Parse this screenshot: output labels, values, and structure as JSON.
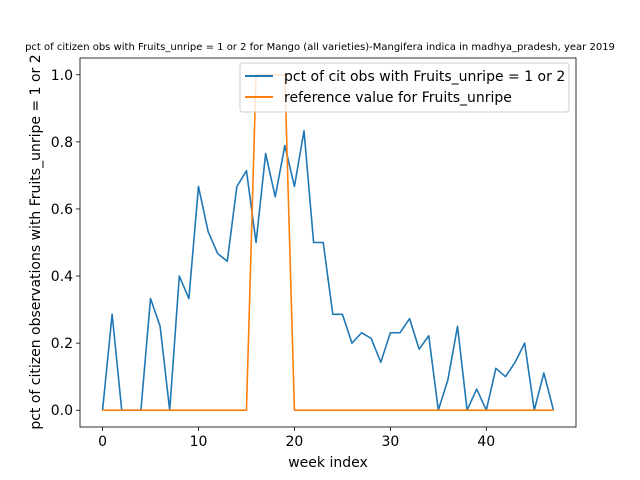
{
  "chart_data": {
    "type": "line",
    "title": "pct of citizen obs with Fruits_unripe = 1 or 2 for Mango (all varieties)-Mangifera indica in madhya_pradesh, year 2019",
    "xlabel": "week index",
    "ylabel": "pct of citizen observations with Fruits_unripe = 1 or 2",
    "xlim": [
      -2.35,
      49.35
    ],
    "ylim": [
      -0.05,
      1.05
    ],
    "xticks": [
      0,
      10,
      20,
      30,
      40
    ],
    "yticks": [
      0.0,
      0.2,
      0.4,
      0.6,
      0.8,
      1.0
    ],
    "legend_position": "top-right",
    "grid": false,
    "series": [
      {
        "name": "pct of cit obs with Fruits_unripe = 1 or 2",
        "color": "#1f77b4",
        "x": [
          0,
          1,
          2,
          3,
          4,
          5,
          6,
          7,
          8,
          9,
          10,
          11,
          12,
          13,
          14,
          15,
          16,
          17,
          18,
          19,
          20,
          21,
          22,
          23,
          24,
          25,
          26,
          27,
          28,
          29,
          30,
          31,
          32,
          33,
          34,
          35,
          36,
          37,
          38,
          39,
          40,
          41,
          42,
          43,
          44,
          45,
          46,
          47
        ],
        "y": [
          0.0,
          0.286,
          0.0,
          0.0,
          0.0,
          0.333,
          0.25,
          0.0,
          0.4,
          0.333,
          0.667,
          0.533,
          0.467,
          0.444,
          0.667,
          0.714,
          0.5,
          0.765,
          0.636,
          0.789,
          0.667,
          0.833,
          0.5,
          0.5,
          0.286,
          0.286,
          0.2,
          0.231,
          0.214,
          0.143,
          0.231,
          0.231,
          0.273,
          0.182,
          0.222,
          0.0,
          0.091,
          0.25,
          0.0,
          0.063,
          0.0,
          0.125,
          0.1,
          0.143,
          0.2,
          0.0,
          0.111,
          0.0
        ]
      },
      {
        "name": "reference value for Fruits_unripe",
        "color": "#ff7f0e",
        "x": [
          0,
          1,
          2,
          3,
          4,
          5,
          6,
          7,
          8,
          9,
          10,
          11,
          12,
          13,
          14,
          15,
          16,
          17,
          18,
          19,
          20,
          21,
          22,
          23,
          24,
          25,
          26,
          27,
          28,
          29,
          30,
          31,
          32,
          33,
          34,
          35,
          36,
          37,
          38,
          39,
          40,
          41,
          42,
          43,
          44,
          45,
          46,
          47
        ],
        "y": [
          0,
          0,
          0,
          0,
          0,
          0,
          0,
          0,
          0,
          0,
          0,
          0,
          0,
          0,
          0,
          0,
          1,
          1,
          1,
          1,
          0,
          0,
          0,
          0,
          0,
          0,
          0,
          0,
          0,
          0,
          0,
          0,
          0,
          0,
          0,
          0,
          0,
          0,
          0,
          0,
          0,
          0,
          0,
          0,
          0,
          0,
          0,
          0
        ]
      }
    ]
  }
}
